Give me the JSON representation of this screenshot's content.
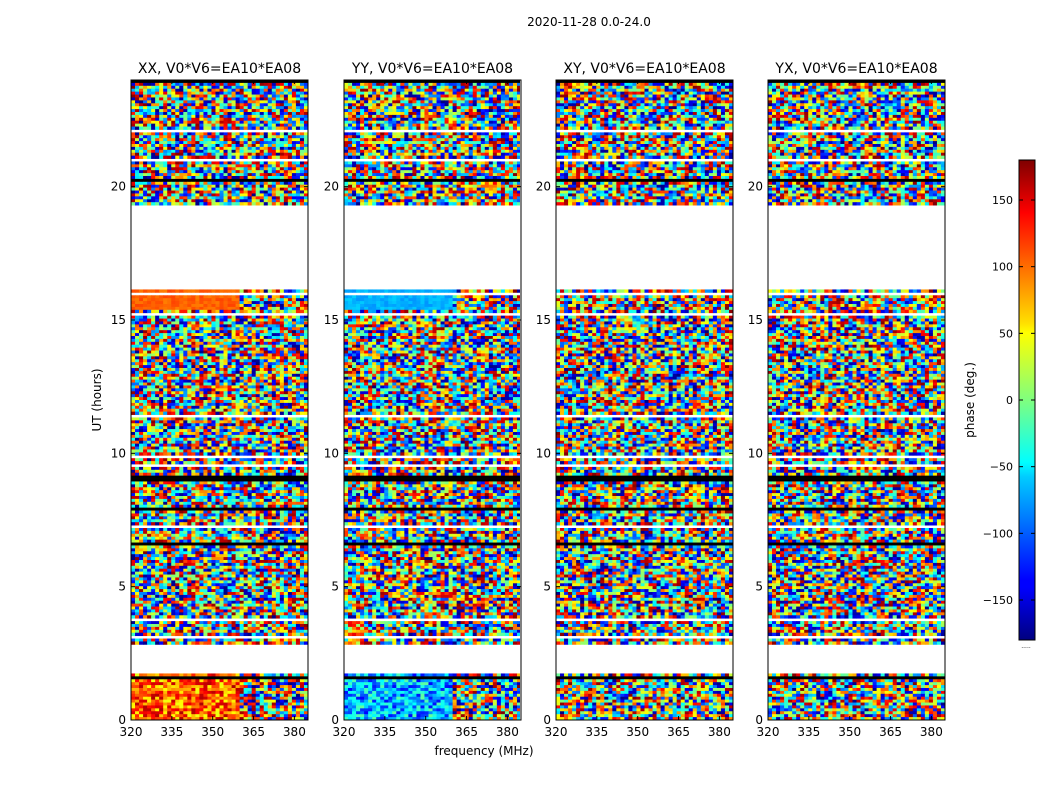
{
  "figure_title": "2020-11-28 0.0-24.0",
  "chart_data": {
    "type": "heatmap",
    "title": "2020-11-28 0.0-24.0",
    "xlabel": "frequency (MHz)",
    "ylabel": "UT (hours)",
    "xlim": [
      320,
      385
    ],
    "ylim": [
      0,
      24
    ],
    "x_ticks": [
      320,
      335,
      350,
      365,
      380
    ],
    "y_ticks": [
      0,
      5,
      10,
      15,
      20
    ],
    "panels": [
      {
        "title": "XX, V0*V6=EA10*EA08",
        "polarization": "XX"
      },
      {
        "title": "YY, V0*V6=EA10*EA08",
        "polarization": "YY"
      },
      {
        "title": "XY, V0*V6=EA10*EA08",
        "polarization": "XY"
      },
      {
        "title": "YX, V0*V6=EA10*EA08",
        "polarization": "YX"
      }
    ],
    "no_data_ut_ranges": [
      [
        1.7,
        2.8
      ],
      [
        19.3,
        16.3
      ]
    ],
    "colorbar": {
      "label": "phase (deg.)",
      "range": [
        -180,
        180
      ],
      "ticks": [
        150,
        100,
        50,
        0,
        -50,
        -100,
        -150
      ],
      "colormap": "jet",
      "footer": "....."
    }
  }
}
